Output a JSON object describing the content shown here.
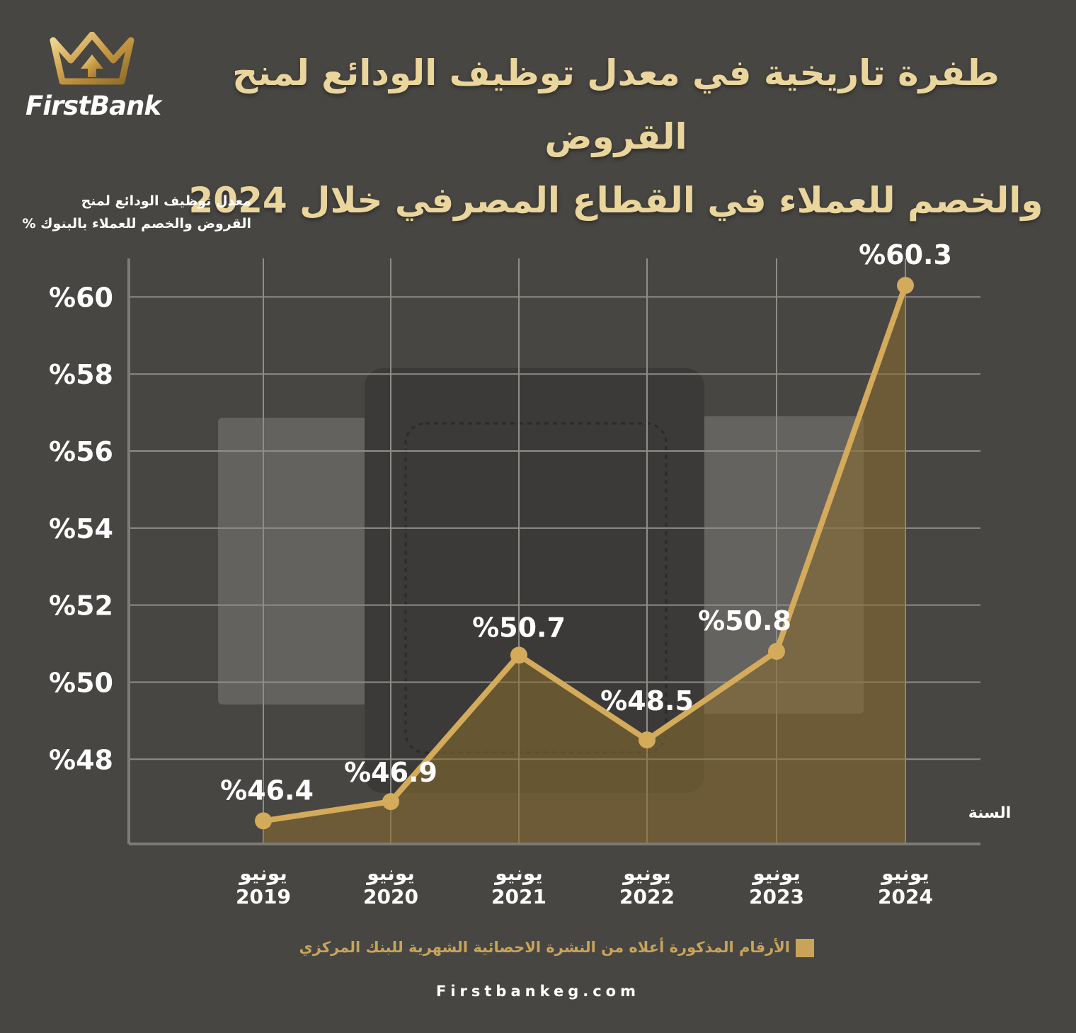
{
  "brand": {
    "name": "FirstBank",
    "logo_icon": "crown-arrow-icon",
    "gold": "#c9a458",
    "light_gold": "#ead69d"
  },
  "header": {
    "title_line1": "طفرة تاريخية في معدل توظيف الودائع لمنح القروض",
    "title_line2": "والخصم للعملاء في القطاع المصرفي خلال 2024"
  },
  "footer": {
    "note": "الأرقام المذكورة أعلاه من النشرة الاحصائية الشهرية للبنك المركزي",
    "website": "Firstbankeg.com"
  },
  "chart_data": {
    "type": "line",
    "title": "",
    "ylabel_line1": "معدل توظيف الودائع لمنح",
    "ylabel_line2": "القروض والخصم للعملاء بالبنوك %",
    "xlabel": "السنة",
    "categories": [
      {
        "month": "يونيو",
        "year": "2019"
      },
      {
        "month": "يونيو",
        "year": "2020"
      },
      {
        "month": "يونيو",
        "year": "2021"
      },
      {
        "month": "يونيو",
        "year": "2022"
      },
      {
        "month": "يونيو",
        "year": "2023"
      },
      {
        "month": "يونيو",
        "year": "2024"
      }
    ],
    "series": [
      {
        "values": [
          46.4,
          46.9,
          50.7,
          48.5,
          50.8,
          60.3
        ],
        "labels": [
          "%46.4",
          "%46.9",
          "%50.7",
          "%48.5",
          "%50.8",
          "%60.3"
        ],
        "color": "#d4aa5b"
      }
    ],
    "yticks": [
      48,
      50,
      52,
      54,
      56,
      58,
      60
    ],
    "ytick_labels": [
      "%48",
      "%50",
      "%52",
      "%54",
      "%56",
      "%58",
      "%60"
    ],
    "ylim": [
      45.8,
      61
    ],
    "grid": true,
    "area_fill": true
  }
}
